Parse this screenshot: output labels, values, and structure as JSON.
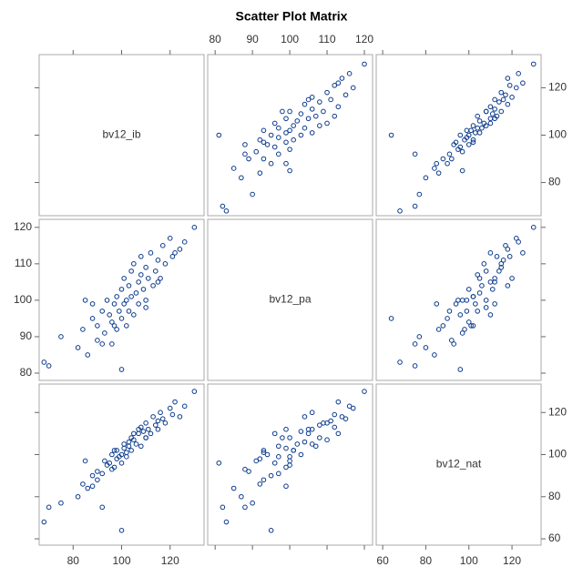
{
  "chart_data": {
    "type": "scatter_matrix",
    "title": "Scatter Plot Matrix",
    "color": "#0b3a8c",
    "variables": [
      {
        "name": "bv12_ib",
        "lim": [
          66,
          134
        ],
        "ticks": [
          80,
          100,
          120
        ],
        "values": [
          68,
          70,
          75,
          82,
          84,
          86,
          88,
          90,
          90,
          92,
          93,
          94,
          95,
          96,
          96,
          97,
          98,
          98,
          99,
          100,
          100,
          101,
          101,
          102,
          102,
          103,
          103,
          104,
          104,
          105,
          105,
          106,
          107,
          107,
          108,
          108,
          109,
          110,
          110,
          111,
          112,
          113,
          114,
          115,
          116,
          117,
          118,
          120,
          121,
          122,
          124,
          126,
          130,
          85,
          92,
          100,
          97,
          110,
          115,
          88
        ]
      },
      {
        "name": "bv12_pa",
        "lim": [
          78,
          122.2
        ],
        "ticks": [
          80,
          90,
          100,
          110,
          120
        ],
        "values": [
          83,
          82,
          90,
          87,
          92,
          85,
          95,
          93,
          89,
          97,
          91,
          100,
          96,
          88,
          94,
          99,
          92,
          101,
          97,
          103,
          95,
          99,
          106,
          93,
          100,
          104,
          97,
          108,
          101,
          96,
          110,
          102,
          105,
          99,
          107,
          112,
          103,
          100,
          109,
          106,
          113,
          104,
          108,
          111,
          106,
          115,
          110,
          117,
          112,
          113,
          114,
          116,
          120,
          100,
          88,
          81,
          93,
          98,
          105,
          99
        ]
      },
      {
        "name": "bv12_nat",
        "lim": [
          57,
          133.5
        ],
        "ticks": [
          60,
          80,
          100,
          120
        ],
        "values": [
          68,
          75,
          77,
          80,
          86,
          84,
          90,
          88,
          92,
          91,
          97,
          95,
          96,
          93,
          100,
          94,
          98,
          102,
          99,
          100,
          64,
          103,
          105,
          101,
          99,
          106,
          104,
          108,
          102,
          110,
          107,
          105,
          110,
          112,
          104,
          113,
          111,
          108,
          115,
          112,
          110,
          118,
          114,
          116,
          120,
          117,
          115,
          122,
          119,
          125,
          118,
          123,
          130,
          97,
          75,
          96,
          102,
          108,
          112,
          85
        ]
      }
    ]
  }
}
